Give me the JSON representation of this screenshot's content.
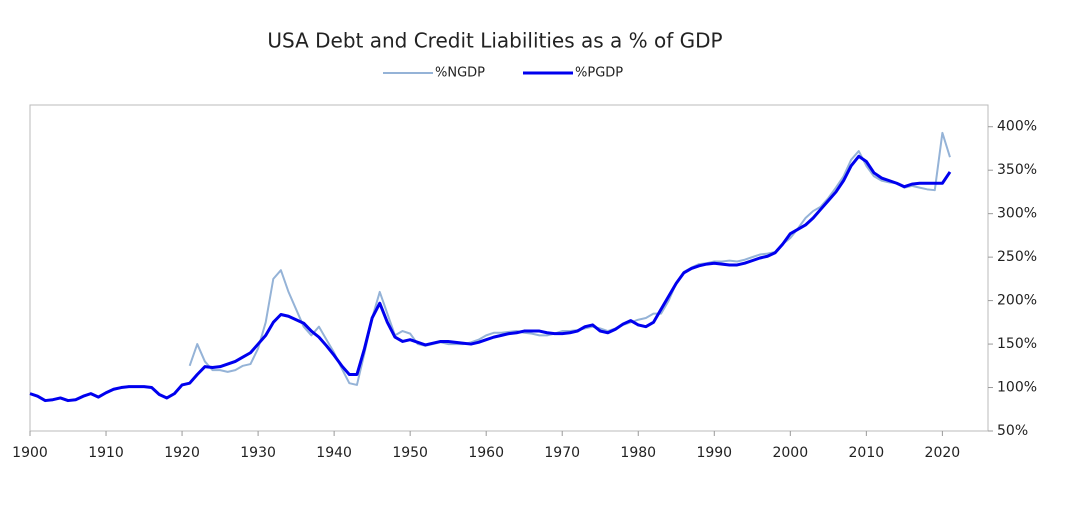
{
  "chart_data": {
    "type": "line",
    "title": "USA Debt and Credit Liabilities as a % of GDP",
    "x": [
      1900,
      1901,
      1902,
      1903,
      1904,
      1905,
      1906,
      1907,
      1908,
      1909,
      1910,
      1911,
      1912,
      1913,
      1914,
      1915,
      1916,
      1917,
      1918,
      1919,
      1920,
      1921,
      1922,
      1923,
      1924,
      1925,
      1926,
      1927,
      1928,
      1929,
      1930,
      1931,
      1932,
      1933,
      1934,
      1935,
      1936,
      1937,
      1938,
      1939,
      1940,
      1941,
      1942,
      1943,
      1944,
      1945,
      1946,
      1947,
      1948,
      1949,
      1950,
      1951,
      1952,
      1953,
      1954,
      1955,
      1956,
      1957,
      1958,
      1959,
      1960,
      1961,
      1962,
      1963,
      1964,
      1965,
      1966,
      1967,
      1968,
      1969,
      1970,
      1971,
      1972,
      1973,
      1974,
      1975,
      1976,
      1977,
      1978,
      1979,
      1980,
      1981,
      1982,
      1983,
      1984,
      1985,
      1986,
      1987,
      1988,
      1989,
      1990,
      1991,
      1992,
      1993,
      1994,
      1995,
      1996,
      1997,
      1998,
      1999,
      2000,
      2001,
      2002,
      2003,
      2004,
      2005,
      2006,
      2007,
      2008,
      2009,
      2010,
      2011,
      2012,
      2013,
      2014,
      2015,
      2016,
      2017,
      2018,
      2019,
      2020,
      2021
    ],
    "series": [
      {
        "name": "%NGDP",
        "color": "#95b3d7",
        "width": 2,
        "values": [
          null,
          null,
          null,
          null,
          null,
          null,
          null,
          null,
          null,
          null,
          null,
          null,
          null,
          null,
          null,
          null,
          null,
          null,
          null,
          null,
          null,
          125,
          150,
          130,
          120,
          120,
          118,
          120,
          125,
          127,
          145,
          175,
          225,
          235,
          210,
          190,
          170,
          160,
          170,
          155,
          140,
          122,
          105,
          103,
          140,
          180,
          210,
          185,
          160,
          165,
          162,
          150,
          148,
          150,
          152,
          150,
          150,
          150,
          152,
          155,
          160,
          163,
          163,
          164,
          165,
          163,
          162,
          160,
          160,
          162,
          165,
          165,
          166,
          168,
          170,
          168,
          165,
          168,
          172,
          175,
          178,
          180,
          185,
          185,
          200,
          220,
          233,
          238,
          242,
          243,
          245,
          245,
          246,
          245,
          247,
          250,
          253,
          254,
          256,
          265,
          272,
          283,
          295,
          303,
          308,
          318,
          330,
          343,
          362,
          372,
          355,
          343,
          338,
          336,
          335,
          330,
          332,
          330,
          328,
          327,
          393,
          365
        ]
      },
      {
        "name": "%PGDP",
        "color": "#0000ee",
        "width": 3,
        "values": [
          93,
          90,
          85,
          86,
          88,
          85,
          86,
          90,
          93,
          89,
          94,
          98,
          100,
          101,
          101,
          101,
          100,
          92,
          88,
          93,
          103,
          105,
          115,
          124,
          123,
          124,
          127,
          130,
          135,
          140,
          150,
          160,
          175,
          184,
          182,
          178,
          174,
          165,
          158,
          148,
          137,
          125,
          115,
          115,
          145,
          180,
          197,
          175,
          158,
          153,
          155,
          152,
          149,
          151,
          153,
          153,
          152,
          151,
          150,
          152,
          155,
          158,
          160,
          162,
          163,
          165,
          165,
          165,
          163,
          162,
          162,
          163,
          165,
          170,
          172,
          165,
          163,
          167,
          173,
          177,
          172,
          170,
          175,
          190,
          205,
          220,
          232,
          237,
          240,
          242,
          243,
          242,
          241,
          241,
          243,
          246,
          249,
          251,
          255,
          265,
          277,
          282,
          287,
          295,
          305,
          315,
          325,
          338,
          355,
          366,
          360,
          347,
          341,
          338,
          335,
          331,
          334,
          335,
          335,
          335,
          335,
          348
        ]
      }
    ],
    "xlim": [
      1900,
      2026
    ],
    "xticks": [
      1900,
      1910,
      1920,
      1930,
      1940,
      1950,
      1960,
      1970,
      1980,
      1990,
      2000,
      2010,
      2020
    ],
    "ylim": [
      50,
      425
    ],
    "yticks": [
      {
        "value": 50,
        "label": "50%"
      },
      {
        "value": 100,
        "label": "100%"
      },
      {
        "value": 150,
        "label": "150%"
      },
      {
        "value": 200,
        "label": "200%"
      },
      {
        "value": 250,
        "label": "250%"
      },
      {
        "value": 300,
        "label": "300%"
      },
      {
        "value": 350,
        "label": "350%"
      },
      {
        "value": 400,
        "label": "400%"
      }
    ],
    "y_axis_side": "right",
    "legend": "top"
  }
}
